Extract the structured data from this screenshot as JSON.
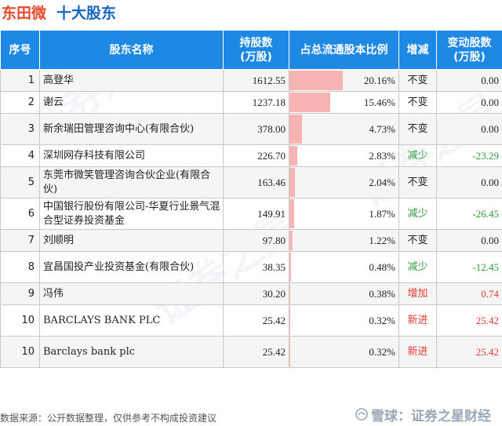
{
  "header": {
    "company": "东田微",
    "suffix": "十大股东"
  },
  "columns": {
    "rank": "序号",
    "name": "股东名称",
    "shares_line1": "持股数",
    "shares_line2": "(万股)",
    "ratio": "占总流通股本比例",
    "change": "增减",
    "delta_line1": "变动股数",
    "delta_line2": "(万股)"
  },
  "rows": [
    {
      "rank": "1",
      "name": "高登华",
      "shares": "1612.55",
      "ratio": "20.16%",
      "ratio_value": 20.16,
      "change": "不变",
      "change_color": "#222222",
      "delta": "0.00",
      "delta_color": "#222222"
    },
    {
      "rank": "2",
      "name": "谢云",
      "shares": "1237.18",
      "ratio": "15.46%",
      "ratio_value": 15.46,
      "change": "不变",
      "change_color": "#222222",
      "delta": "0.00",
      "delta_color": "#222222"
    },
    {
      "rank": "3",
      "name": "新余瑞田管理咨询中心(有限合伙)",
      "shares": "378.00",
      "ratio": "4.73%",
      "ratio_value": 4.73,
      "change": "不变",
      "change_color": "#222222",
      "delta": "0.00",
      "delta_color": "#222222"
    },
    {
      "rank": "4",
      "name": "深圳网存科技有限公司",
      "shares": "226.70",
      "ratio": "2.83%",
      "ratio_value": 2.83,
      "change": "减少",
      "change_color": "#2e9d3e",
      "delta": "-23.29",
      "delta_color": "#2e9d3e"
    },
    {
      "rank": "5",
      "name": "东莞市微笑管理咨询合伙企业(有限合伙)",
      "shares": "163.46",
      "ratio": "2.04%",
      "ratio_value": 2.04,
      "change": "不变",
      "change_color": "#222222",
      "delta": "0.00",
      "delta_color": "#222222"
    },
    {
      "rank": "6",
      "name": "中国银行股份有限公司-华夏行业景气混合型证券投资基金",
      "shares": "149.91",
      "ratio": "1.87%",
      "ratio_value": 1.87,
      "change": "减少",
      "change_color": "#2e9d3e",
      "delta": "-26.45",
      "delta_color": "#2e9d3e"
    },
    {
      "rank": "7",
      "name": "刘顺明",
      "shares": "97.80",
      "ratio": "1.22%",
      "ratio_value": 1.22,
      "change": "不变",
      "change_color": "#222222",
      "delta": "0.00",
      "delta_color": "#222222"
    },
    {
      "rank": "8",
      "name": "宜昌国投产业投资基金(有限合伙)",
      "shares": "38.35",
      "ratio": "0.48%",
      "ratio_value": 0.48,
      "change": "减少",
      "change_color": "#2e9d3e",
      "delta": "-12.45",
      "delta_color": "#2e9d3e"
    },
    {
      "rank": "9",
      "name": "冯伟",
      "shares": "30.20",
      "ratio": "0.38%",
      "ratio_value": 0.38,
      "change": "增加",
      "change_color": "#e53935",
      "delta": "0.74",
      "delta_color": "#e53935"
    },
    {
      "rank": "10",
      "name": "BARCLAYS BANK PLC",
      "shares": "25.42",
      "ratio": "0.32%",
      "ratio_value": 0.32,
      "change": "新进",
      "change_color": "#e53935",
      "delta": "25.42",
      "delta_color": "#e53935"
    },
    {
      "rank": "10",
      "name": "Barclays bank plc",
      "shares": "25.42",
      "ratio": "0.32%",
      "ratio_value": 0.32,
      "change": "新进",
      "change_color": "#e53935",
      "delta": "25.42",
      "delta_color": "#e53935"
    }
  ],
  "footer": {
    "source": "数据来源：公开数据整理，仅供参考不构成投资建议"
  },
  "brand": {
    "text": "雪球：证券之星财经",
    "icon": "snowball-icon"
  },
  "watermark": {
    "text": "证券之星"
  }
}
